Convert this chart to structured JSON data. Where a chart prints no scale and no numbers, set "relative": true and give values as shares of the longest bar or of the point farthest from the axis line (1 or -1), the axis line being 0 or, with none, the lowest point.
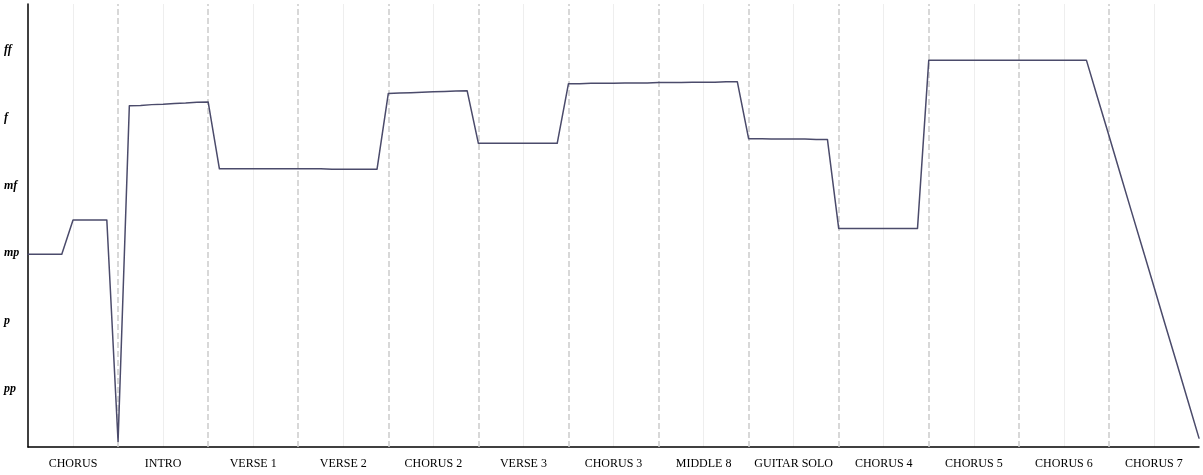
{
  "chart_data": {
    "type": "line",
    "relative": true,
    "categories": [
      null,
      null,
      null,
      null,
      "CHORUS",
      null,
      null,
      null,
      null,
      null,
      null,
      null,
      "INTRO",
      null,
      null,
      null,
      null,
      null,
      null,
      null,
      "VERSE 1",
      null,
      null,
      null,
      null,
      null,
      null,
      null,
      "VERSE 2",
      null,
      null,
      null,
      null,
      null,
      null,
      null,
      "CHORUS 2",
      null,
      null,
      null,
      null,
      null,
      null,
      null,
      "VERSE 3",
      null,
      null,
      null,
      null,
      null,
      null,
      null,
      "CHORUS 3",
      null,
      null,
      null,
      null,
      null,
      null,
      null,
      "MIDDLE 8",
      null,
      null,
      null,
      null,
      null,
      null,
      null,
      "GUITAR SOLO",
      null,
      null,
      null,
      null,
      null,
      null,
      null,
      "CHORUS 4",
      null,
      null,
      null,
      null,
      null,
      null,
      null,
      "CHORUS 5",
      null,
      null,
      null,
      null,
      null,
      null,
      null,
      "CHORUS 6",
      null,
      null,
      null,
      null,
      null,
      null,
      null,
      "CHORUS 7",
      null,
      null,
      null,
      null
    ],
    "series": [
      {
        "color": "#4b4b6b",
        "values": [
          0.498,
          0.498,
          0.498,
          0.498,
          0.587,
          0.587,
          0.587,
          0.587,
          0.014,
          0.882,
          0.883,
          0.885,
          0.886,
          0.888,
          0.889,
          0.891,
          0.892,
          0.719,
          0.719,
          0.719,
          0.719,
          0.719,
          0.719,
          0.719,
          0.719,
          0.719,
          0.719,
          0.718,
          0.718,
          0.718,
          0.718,
          0.718,
          0.914,
          0.915,
          0.916,
          0.917,
          0.918,
          0.919,
          0.92,
          0.921,
          0.785,
          0.785,
          0.785,
          0.785,
          0.785,
          0.785,
          0.785,
          0.785,
          0.939,
          0.939,
          0.94,
          0.94,
          0.94,
          0.941,
          0.941,
          0.941,
          0.942,
          0.942,
          0.942,
          0.943,
          0.943,
          0.943,
          0.944,
          0.944,
          0.797,
          0.797,
          0.796,
          0.796,
          0.796,
          0.796,
          0.795,
          0.795,
          0.565,
          0.565,
          0.565,
          0.565,
          0.565,
          0.565,
          0.565,
          0.565,
          1,
          1,
          1,
          1,
          1,
          1,
          1,
          1,
          1,
          1,
          1,
          1,
          1,
          1,
          1,
          0.902,
          0.805,
          0.707,
          0.609,
          0.512,
          0.414,
          0.316,
          0.219,
          0.121,
          0.023
        ]
      }
    ],
    "annotations": [
      "pp",
      "p",
      "mp",
      "mf",
      "f",
      "ff"
    ],
    "grid": "x",
    "marker": "none",
    "line_style": "solid"
  }
}
